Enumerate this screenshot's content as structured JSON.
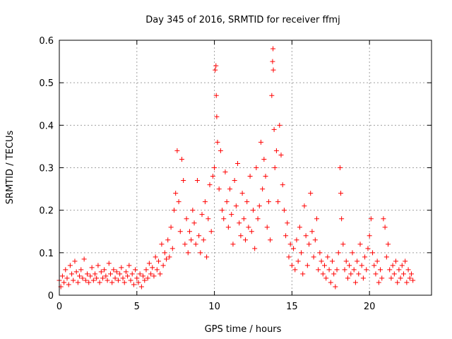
{
  "chart_data": {
    "type": "scatter",
    "title": "Day 345 of 2016, SRMTID for receiver ffmj",
    "xlabel": "GPS time / hours",
    "ylabel": "SRMTID / TECUs",
    "xlim": [
      0,
      24
    ],
    "ylim": [
      0,
      0.6
    ],
    "xticks": [
      0,
      5,
      10,
      15,
      20
    ],
    "yticks": [
      0,
      0.1,
      0.2,
      0.3,
      0.4,
      0.5,
      0.6
    ],
    "xtick_labels": [
      "0",
      "5",
      "10",
      "15",
      "20"
    ],
    "ytick_labels": [
      "0",
      "0.1",
      "0.2",
      "0.3",
      "0.4",
      "0.5",
      "0.6"
    ],
    "grid": true,
    "marker": "+",
    "series": [
      {
        "name": "SRMTID",
        "color": "#ff0000",
        "points": [
          [
            0.0,
            0.035
          ],
          [
            0.1,
            0.02
          ],
          [
            0.2,
            0.045
          ],
          [
            0.3,
            0.03
          ],
          [
            0.4,
            0.06
          ],
          [
            0.5,
            0.04
          ],
          [
            0.6,
            0.025
          ],
          [
            0.7,
            0.07
          ],
          [
            0.8,
            0.05
          ],
          [
            0.9,
            0.035
          ],
          [
            1.0,
            0.08
          ],
          [
            1.1,
            0.055
          ],
          [
            1.2,
            0.03
          ],
          [
            1.3,
            0.045
          ],
          [
            1.4,
            0.06
          ],
          [
            1.5,
            0.04
          ],
          [
            1.6,
            0.085
          ],
          [
            1.7,
            0.035
          ],
          [
            1.8,
            0.05
          ],
          [
            1.9,
            0.03
          ],
          [
            2.0,
            0.045
          ],
          [
            2.1,
            0.065
          ],
          [
            2.2,
            0.035
          ],
          [
            2.3,
            0.05
          ],
          [
            2.4,
            0.04
          ],
          [
            2.5,
            0.07
          ],
          [
            2.6,
            0.03
          ],
          [
            2.7,
            0.055
          ],
          [
            2.8,
            0.04
          ],
          [
            2.9,
            0.06
          ],
          [
            3.0,
            0.045
          ],
          [
            3.1,
            0.035
          ],
          [
            3.2,
            0.075
          ],
          [
            3.3,
            0.05
          ],
          [
            3.4,
            0.03
          ],
          [
            3.5,
            0.06
          ],
          [
            3.6,
            0.04
          ],
          [
            3.7,
            0.055
          ],
          [
            3.8,
            0.035
          ],
          [
            3.9,
            0.05
          ],
          [
            4.0,
            0.065
          ],
          [
            4.1,
            0.04
          ],
          [
            4.2,
            0.03
          ],
          [
            4.3,
            0.055
          ],
          [
            4.4,
            0.045
          ],
          [
            4.5,
            0.07
          ],
          [
            4.6,
            0.035
          ],
          [
            4.7,
            0.05
          ],
          [
            4.8,
            0.025
          ],
          [
            4.9,
            0.06
          ],
          [
            5.0,
            0.04
          ],
          [
            5.1,
            0.03
          ],
          [
            5.2,
            0.05
          ],
          [
            5.3,
            0.02
          ],
          [
            5.4,
            0.045
          ],
          [
            5.5,
            0.035
          ],
          [
            5.6,
            0.06
          ],
          [
            5.7,
            0.04
          ],
          [
            5.8,
            0.075
          ],
          [
            5.9,
            0.05
          ],
          [
            6.0,
            0.065
          ],
          [
            6.1,
            0.045
          ],
          [
            6.2,
            0.09
          ],
          [
            6.3,
            0.06
          ],
          [
            6.4,
            0.08
          ],
          [
            6.5,
            0.05
          ],
          [
            6.6,
            0.12
          ],
          [
            6.7,
            0.07
          ],
          [
            6.8,
            0.1
          ],
          [
            6.9,
            0.085
          ],
          [
            7.0,
            0.13
          ],
          [
            7.1,
            0.09
          ],
          [
            7.2,
            0.16
          ],
          [
            7.3,
            0.11
          ],
          [
            7.4,
            0.2
          ],
          [
            7.5,
            0.24
          ],
          [
            7.6,
            0.34
          ],
          [
            7.7,
            0.22
          ],
          [
            7.8,
            0.15
          ],
          [
            7.9,
            0.32
          ],
          [
            8.0,
            0.27
          ],
          [
            8.1,
            0.12
          ],
          [
            8.2,
            0.18
          ],
          [
            8.3,
            0.1
          ],
          [
            8.4,
            0.15
          ],
          [
            8.5,
            0.13
          ],
          [
            8.6,
            0.2
          ],
          [
            8.7,
            0.17
          ],
          [
            8.8,
            0.12
          ],
          [
            8.9,
            0.27
          ],
          [
            9.0,
            0.14
          ],
          [
            9.1,
            0.1
          ],
          [
            9.2,
            0.19
          ],
          [
            9.3,
            0.13
          ],
          [
            9.4,
            0.22
          ],
          [
            9.5,
            0.09
          ],
          [
            9.6,
            0.18
          ],
          [
            9.7,
            0.26
          ],
          [
            9.8,
            0.15
          ],
          [
            9.9,
            0.28
          ],
          [
            10.0,
            0.3
          ],
          [
            10.05,
            0.53
          ],
          [
            10.1,
            0.54
          ],
          [
            10.12,
            0.47
          ],
          [
            10.15,
            0.42
          ],
          [
            10.2,
            0.36
          ],
          [
            10.3,
            0.25
          ],
          [
            10.4,
            0.34
          ],
          [
            10.5,
            0.2
          ],
          [
            10.6,
            0.18
          ],
          [
            10.7,
            0.29
          ],
          [
            10.8,
            0.22
          ],
          [
            10.9,
            0.16
          ],
          [
            11.0,
            0.25
          ],
          [
            11.1,
            0.19
          ],
          [
            11.2,
            0.12
          ],
          [
            11.3,
            0.27
          ],
          [
            11.4,
            0.21
          ],
          [
            11.5,
            0.31
          ],
          [
            11.6,
            0.17
          ],
          [
            11.7,
            0.14
          ],
          [
            11.8,
            0.24
          ],
          [
            11.9,
            0.18
          ],
          [
            12.0,
            0.13
          ],
          [
            12.1,
            0.22
          ],
          [
            12.2,
            0.16
          ],
          [
            12.3,
            0.28
          ],
          [
            12.4,
            0.15
          ],
          [
            12.5,
            0.2
          ],
          [
            12.6,
            0.11
          ],
          [
            12.7,
            0.3
          ],
          [
            12.8,
            0.18
          ],
          [
            12.9,
            0.21
          ],
          [
            13.0,
            0.36
          ],
          [
            13.1,
            0.25
          ],
          [
            13.2,
            0.32
          ],
          [
            13.3,
            0.28
          ],
          [
            13.4,
            0.16
          ],
          [
            13.5,
            0.22
          ],
          [
            13.6,
            0.13
          ],
          [
            13.7,
            0.47
          ],
          [
            13.75,
            0.55
          ],
          [
            13.78,
            0.58
          ],
          [
            13.8,
            0.53
          ],
          [
            13.85,
            0.39
          ],
          [
            13.9,
            0.3
          ],
          [
            14.0,
            0.34
          ],
          [
            14.1,
            0.22
          ],
          [
            14.2,
            0.4
          ],
          [
            14.3,
            0.33
          ],
          [
            14.4,
            0.26
          ],
          [
            14.5,
            0.2
          ],
          [
            14.6,
            0.14
          ],
          [
            14.7,
            0.17
          ],
          [
            14.8,
            0.09
          ],
          [
            14.9,
            0.12
          ],
          [
            15.0,
            0.07
          ],
          [
            15.1,
            0.11
          ],
          [
            15.2,
            0.06
          ],
          [
            15.3,
            0.13
          ],
          [
            15.4,
            0.08
          ],
          [
            15.5,
            0.16
          ],
          [
            15.6,
            0.1
          ],
          [
            15.7,
            0.05
          ],
          [
            15.8,
            0.21
          ],
          [
            15.9,
            0.14
          ],
          [
            16.0,
            0.07
          ],
          [
            16.1,
            0.12
          ],
          [
            16.2,
            0.24
          ],
          [
            16.3,
            0.15
          ],
          [
            16.4,
            0.09
          ],
          [
            16.5,
            0.13
          ],
          [
            16.6,
            0.18
          ],
          [
            16.7,
            0.06
          ],
          [
            16.8,
            0.1
          ],
          [
            16.9,
            0.08
          ],
          [
            17.0,
            0.05
          ],
          [
            17.1,
            0.07
          ],
          [
            17.2,
            0.04
          ],
          [
            17.3,
            0.09
          ],
          [
            17.4,
            0.06
          ],
          [
            17.5,
            0.03
          ],
          [
            17.6,
            0.08
          ],
          [
            17.7,
            0.05
          ],
          [
            17.8,
            0.02
          ],
          [
            17.9,
            0.06
          ],
          [
            18.0,
            0.1
          ],
          [
            18.1,
            0.3
          ],
          [
            18.15,
            0.24
          ],
          [
            18.2,
            0.18
          ],
          [
            18.3,
            0.12
          ],
          [
            18.4,
            0.06
          ],
          [
            18.5,
            0.08
          ],
          [
            18.6,
            0.04
          ],
          [
            18.7,
            0.07
          ],
          [
            18.8,
            0.05
          ],
          [
            18.9,
            0.1
          ],
          [
            19.0,
            0.06
          ],
          [
            19.1,
            0.03
          ],
          [
            19.2,
            0.08
          ],
          [
            19.3,
            0.05
          ],
          [
            19.4,
            0.12
          ],
          [
            19.5,
            0.07
          ],
          [
            19.6,
            0.04
          ],
          [
            19.7,
            0.09
          ],
          [
            19.8,
            0.06
          ],
          [
            19.9,
            0.11
          ],
          [
            20.0,
            0.14
          ],
          [
            20.1,
            0.18
          ],
          [
            20.2,
            0.1
          ],
          [
            20.3,
            0.07
          ],
          [
            20.4,
            0.05
          ],
          [
            20.5,
            0.08
          ],
          [
            20.6,
            0.03
          ],
          [
            20.7,
            0.06
          ],
          [
            20.8,
            0.04
          ],
          [
            20.9,
            0.18
          ],
          [
            21.0,
            0.16
          ],
          [
            21.1,
            0.09
          ],
          [
            21.2,
            0.12
          ],
          [
            21.3,
            0.06
          ],
          [
            21.4,
            0.04
          ],
          [
            21.5,
            0.07
          ],
          [
            21.6,
            0.05
          ],
          [
            21.7,
            0.08
          ],
          [
            21.8,
            0.03
          ],
          [
            21.9,
            0.06
          ],
          [
            22.0,
            0.04
          ],
          [
            22.1,
            0.07
          ],
          [
            22.2,
            0.05
          ],
          [
            22.3,
            0.08
          ],
          [
            22.4,
            0.03
          ],
          [
            22.5,
            0.06
          ],
          [
            22.6,
            0.04
          ],
          [
            22.7,
            0.05
          ],
          [
            22.8,
            0.035
          ]
        ]
      }
    ]
  }
}
